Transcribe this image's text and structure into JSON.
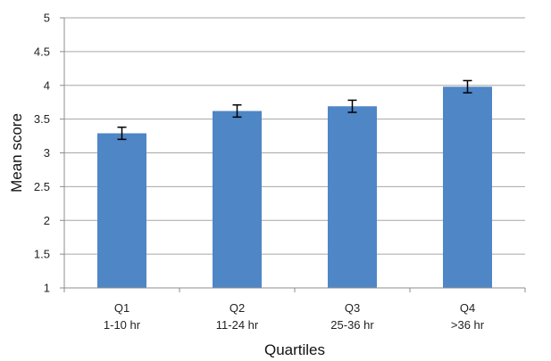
{
  "chart_data": {
    "type": "bar",
    "title": "",
    "xlabel": "Quartiles",
    "ylabel": "Mean score",
    "categories": [
      {
        "line1": "Q1",
        "line2": "1-10 hr"
      },
      {
        "line1": "Q2",
        "line2": "11-24 hr"
      },
      {
        "line1": "Q3",
        "line2": "25-36 hr"
      },
      {
        "line1": "Q4",
        "line2": ">36 hr"
      }
    ],
    "values": [
      3.29,
      3.62,
      3.69,
      3.98
    ],
    "error": [
      0.09,
      0.09,
      0.09,
      0.09
    ],
    "ylim": [
      1,
      5
    ],
    "yticks": [
      "1",
      "1.5",
      "2",
      "2.5",
      "3",
      "3.5",
      "4",
      "4.5",
      "5"
    ],
    "grid": true,
    "bar_color": "#4e86c6"
  }
}
